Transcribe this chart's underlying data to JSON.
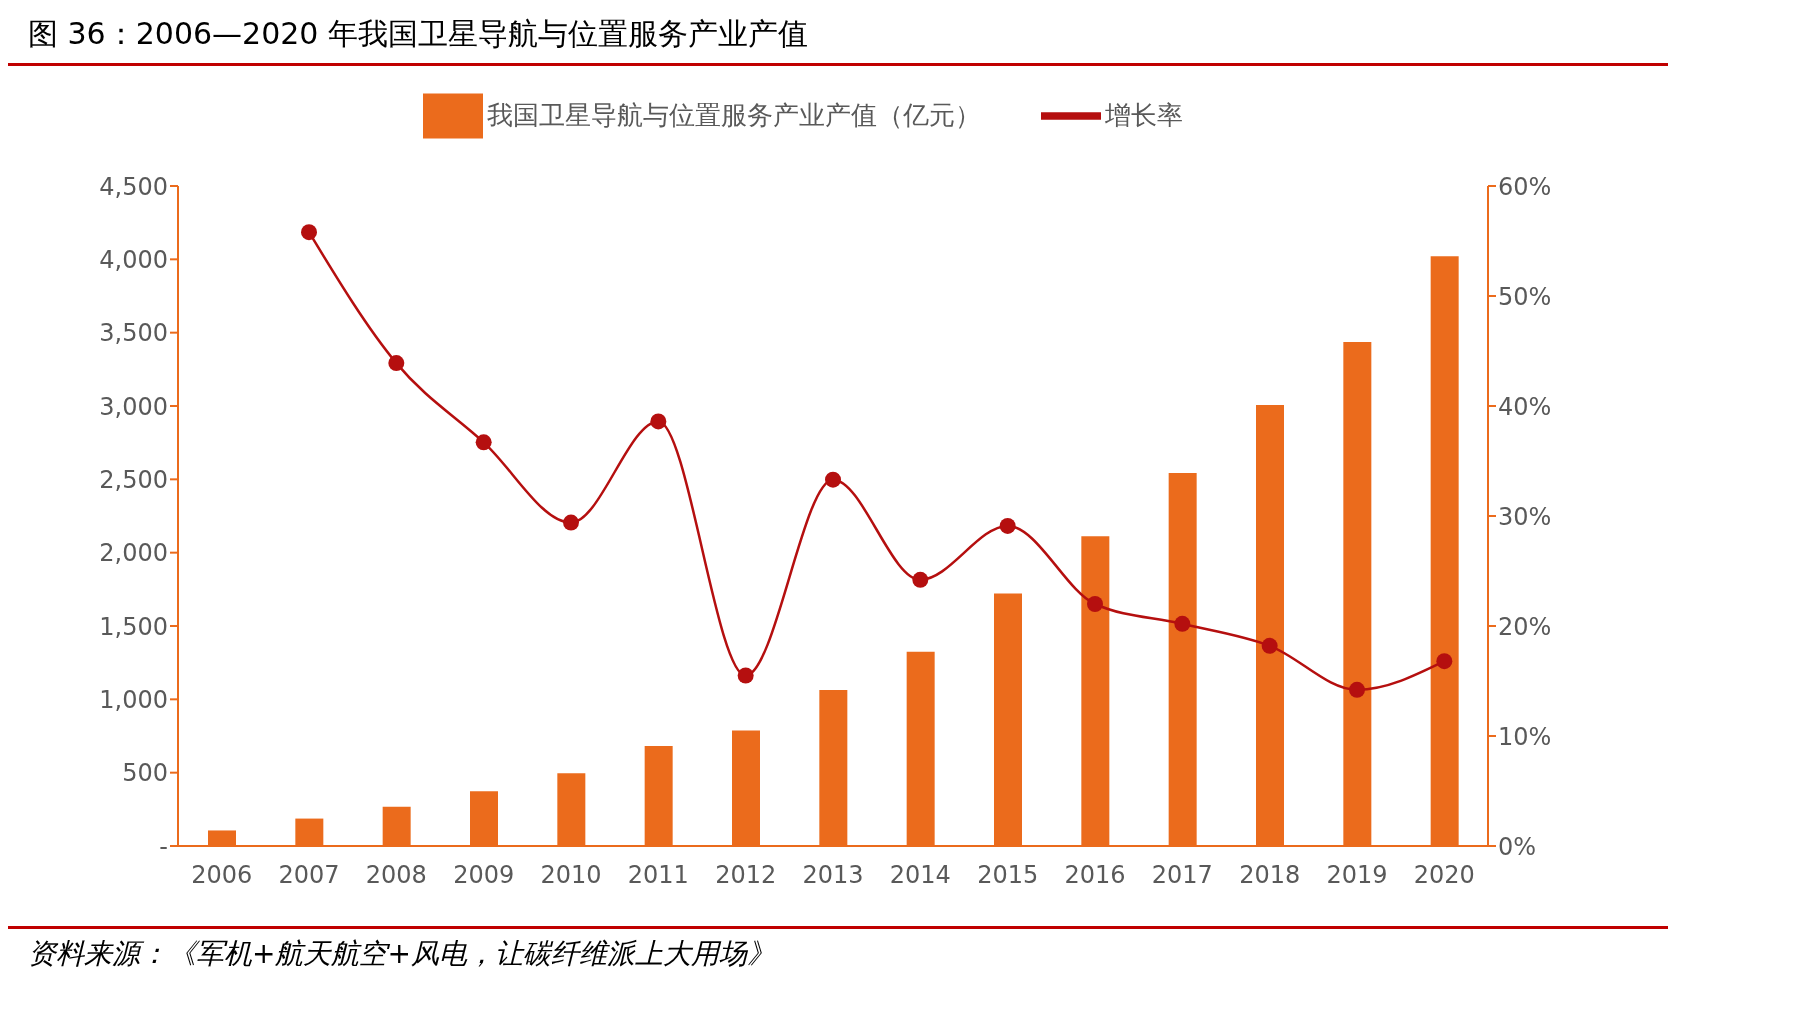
{
  "chart_data": {
    "type": "bar",
    "title": "图 36：2006—2020 年我国卫星导航与位置服务产业产值",
    "categories": [
      "2006",
      "2007",
      "2008",
      "2009",
      "2010",
      "2011",
      "2012",
      "2013",
      "2014",
      "2015",
      "2016",
      "2017",
      "2018",
      "2019",
      "2020"
    ],
    "series": [
      {
        "name": "我国卫星导航与位置服务产业产值（亿元）",
        "color": "#eb6b1c",
        "values": [
          106,
          187,
          268,
          374,
          496,
          682,
          788,
          1064,
          1324,
          1722,
          2112,
          2543,
          3006,
          3436,
          4021
        ]
      },
      {
        "name": "增长率",
        "type": "line",
        "axis": "y2",
        "color": "#b50f0f",
        "values": [
          null,
          55.8,
          43.9,
          36.7,
          29.4,
          38.6,
          15.5,
          33.3,
          24.2,
          29.1,
          22.0,
          20.2,
          18.2,
          14.2,
          16.8
        ]
      }
    ],
    "ylim": [
      0,
      4500
    ],
    "yticks": [
      {
        "value": 0,
        "label": "-"
      },
      {
        "value": 500,
        "label": "500"
      },
      {
        "value": 1000,
        "label": "1,000"
      },
      {
        "value": 1500,
        "label": "1,500"
      },
      {
        "value": 2000,
        "label": "2,000"
      },
      {
        "value": 2500,
        "label": "2,500"
      },
      {
        "value": 3000,
        "label": "3,000"
      },
      {
        "value": 3500,
        "label": "3,500"
      },
      {
        "value": 4000,
        "label": "4,000"
      },
      {
        "value": 4500,
        "label": "4,500"
      }
    ],
    "y2lim": [
      0,
      60
    ],
    "y2ticks": [
      {
        "value": 0,
        "label": "0%"
      },
      {
        "value": 10,
        "label": "10%"
      },
      {
        "value": 20,
        "label": "20%"
      },
      {
        "value": 30,
        "label": "30%"
      },
      {
        "value": 40,
        "label": "40%"
      },
      {
        "value": 50,
        "label": "50%"
      },
      {
        "value": 60,
        "label": "60%"
      }
    ],
    "grid": false,
    "legend": "top",
    "marker": "circle",
    "line_style": "solid",
    "annotations": [
      "资料来源：《军机+航天航空+风电，让碳纤维派上大用场》"
    ]
  }
}
